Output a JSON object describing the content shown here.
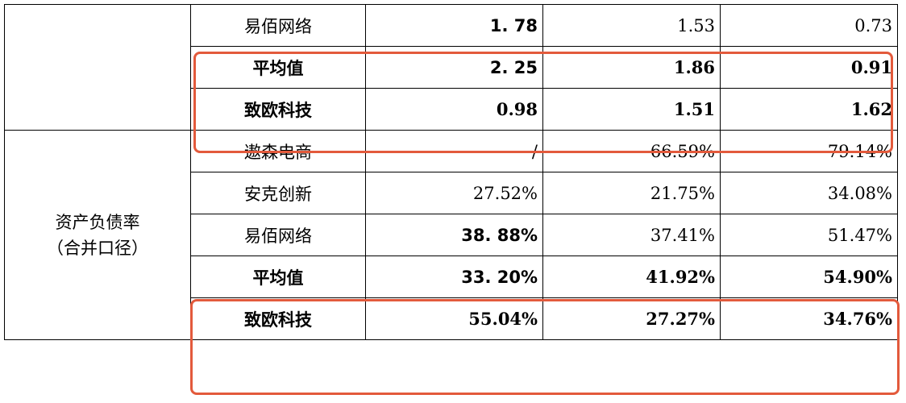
{
  "rows": [
    {
      "name": "易佰网络",
      "v1": "1. 78",
      "v2": "1.53",
      "v3": "0.73"
    },
    {
      "name": "平均值",
      "v1": "2. 25",
      "v2": "1.86",
      "v3": "0.91"
    },
    {
      "name": "致欧科技",
      "v1": "0.98",
      "v2": "1.51",
      "v3": "1.62"
    },
    {
      "name": "遨森电商",
      "v1": "/",
      "v2": "66.59%",
      "v3": "79.14%"
    },
    {
      "name": "安克创新",
      "v1": "27.52%",
      "v2": "21.75%",
      "v3": "34.08%"
    },
    {
      "name": "易佰网络",
      "v1": "38. 88%",
      "v2": "37.41%",
      "v3": "51.47%"
    },
    {
      "name": "平均值",
      "v1": "33. 20%",
      "v2": "41.92%",
      "v3": "54.90%"
    },
    {
      "name": "致欧科技",
      "v1": "55.04%",
      "v2": "27.27%",
      "v3": "34.76%"
    }
  ],
  "category": {
    "line1": "资产负债率",
    "line2": "（合并口径）"
  },
  "highlight_color": "#e35a3c"
}
